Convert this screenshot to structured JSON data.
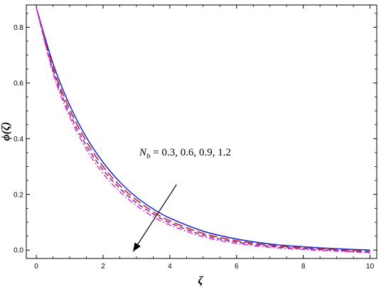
{
  "chart_data": {
    "type": "line",
    "xlabel": "ζ",
    "ylabel": "ϕ(ζ)",
    "xlim": [
      -0.3,
      10.2
    ],
    "ylim": [
      -0.03,
      0.88
    ],
    "x_ticks": [
      0,
      2,
      4,
      6,
      8,
      10
    ],
    "x_tick_labels": [
      "0",
      "2",
      "4",
      "6",
      "8",
      "10"
    ],
    "y_ticks": [
      0.0,
      0.2,
      0.4,
      0.6,
      0.8
    ],
    "y_tick_labels": [
      "0.0",
      "0.2",
      "0.4",
      "0.6",
      "0.8"
    ],
    "grid": false,
    "x": [
      0,
      0.5,
      1,
      1.5,
      2,
      2.5,
      3,
      3.5,
      4,
      5,
      6,
      7,
      8,
      9,
      10
    ],
    "series": [
      {
        "color": "#1f2fd6",
        "dash": "solid",
        "values": [
          0.87,
          0.67,
          0.52,
          0.405,
          0.315,
          0.245,
          0.19,
          0.148,
          0.115,
          0.068,
          0.04,
          0.022,
          0.012,
          0.005,
          0.0
        ]
      },
      {
        "color": "#cc1f1f",
        "dash": "long-dash",
        "values": [
          0.87,
          0.655,
          0.505,
          0.39,
          0.3,
          0.232,
          0.18,
          0.138,
          0.105,
          0.06,
          0.034,
          0.018,
          0.008,
          0.002,
          -0.005
        ]
      },
      {
        "color": "#7a2fa8",
        "dash": "dash",
        "values": [
          0.87,
          0.645,
          0.49,
          0.375,
          0.288,
          0.222,
          0.17,
          0.13,
          0.098,
          0.054,
          0.029,
          0.014,
          0.005,
          -0.001,
          -0.008
        ]
      },
      {
        "color": "#e83cd0",
        "dash": "dash-dot",
        "values": [
          0.87,
          0.635,
          0.478,
          0.362,
          0.275,
          0.21,
          0.16,
          0.12,
          0.09,
          0.048,
          0.024,
          0.01,
          0.002,
          -0.004,
          -0.01
        ]
      }
    ],
    "annotation": {
      "symbol": "N",
      "subscript": "b",
      "text": " = 0.3, 0.6, 0.9, 1.2",
      "arrow_from": [
        4.2,
        0.235
      ],
      "arrow_to": [
        2.9,
        -0.005
      ]
    }
  }
}
